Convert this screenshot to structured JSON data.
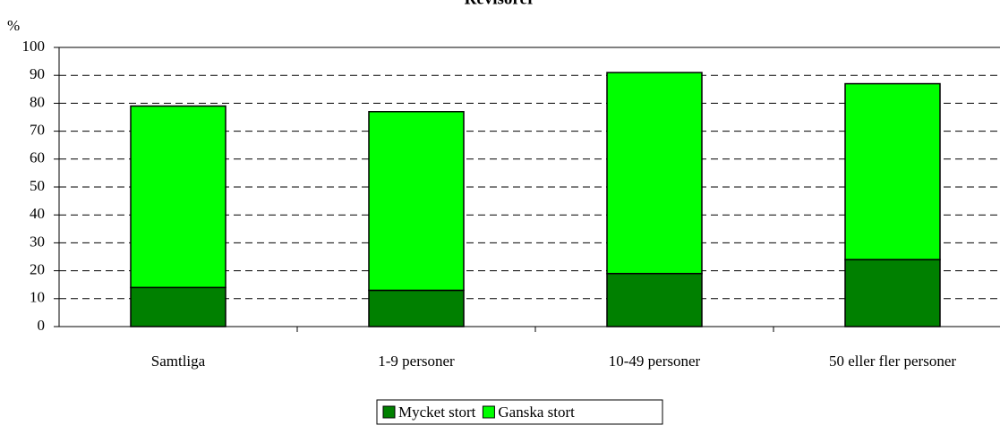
{
  "chart_data": {
    "type": "stacked_bar",
    "title": "Revisorer",
    "y_label": "%",
    "categories": [
      "Samtliga",
      "1-9 personer",
      "10-49 personer",
      "50 eller fler personer"
    ],
    "series": [
      {
        "name": "Mycket stort",
        "color": "#008000",
        "values": [
          14,
          13,
          19,
          24
        ]
      },
      {
        "name": "Ganska stort",
        "color": "#00ff00",
        "values": [
          65,
          64,
          72,
          63
        ]
      }
    ],
    "ylim": [
      0,
      100
    ],
    "yticks": [
      0,
      10,
      20,
      30,
      40,
      50,
      60,
      70,
      80,
      90,
      100
    ],
    "grid": true
  }
}
